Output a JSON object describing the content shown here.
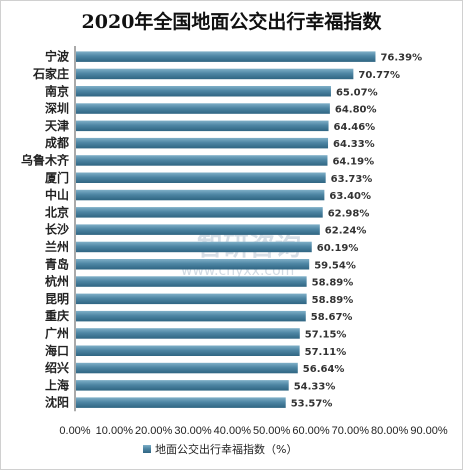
{
  "chart_data": {
    "type": "bar",
    "orientation": "horizontal",
    "title": "2020年全国地面公交出行幸福指数",
    "categories": [
      "宁波",
      "石家庄",
      "南京",
      "深圳",
      "天津",
      "成都",
      "乌鲁木齐",
      "厦门",
      "中山",
      "北京",
      "长沙",
      "兰州",
      "青岛",
      "杭州",
      "昆明",
      "重庆",
      "广州",
      "海口",
      "绍兴",
      "上海",
      "沈阳"
    ],
    "values": [
      76.39,
      70.77,
      65.07,
      64.8,
      64.46,
      64.33,
      64.19,
      63.73,
      63.4,
      62.98,
      62.24,
      60.19,
      59.54,
      58.89,
      58.89,
      58.67,
      57.15,
      57.11,
      56.64,
      54.33,
      53.57
    ],
    "value_labels": [
      "76.39%",
      "70.77%",
      "65.07%",
      "64.80%",
      "64.46%",
      "64.33%",
      "64.19%",
      "63.73%",
      "63.40%",
      "62.98%",
      "62.24%",
      "60.19%",
      "59.54%",
      "58.89%",
      "58.89%",
      "58.67%",
      "57.15%",
      "57.11%",
      "56.64%",
      "54.33%",
      "53.57%"
    ],
    "xlim": [
      0,
      90
    ],
    "x_ticks": [
      "0.00%",
      "10.00%",
      "20.00%",
      "30.00%",
      "40.00%",
      "50.00%",
      "60.00%",
      "70.00%",
      "80.00%",
      "90.00%"
    ],
    "legend": {
      "label": "地面公交出行幸福指数（%）",
      "position": "bottom"
    },
    "grid": false,
    "bar_color": "#4e86a4"
  },
  "watermark": {
    "brand": "智研咨询",
    "url": "www.chyxx.com"
  }
}
